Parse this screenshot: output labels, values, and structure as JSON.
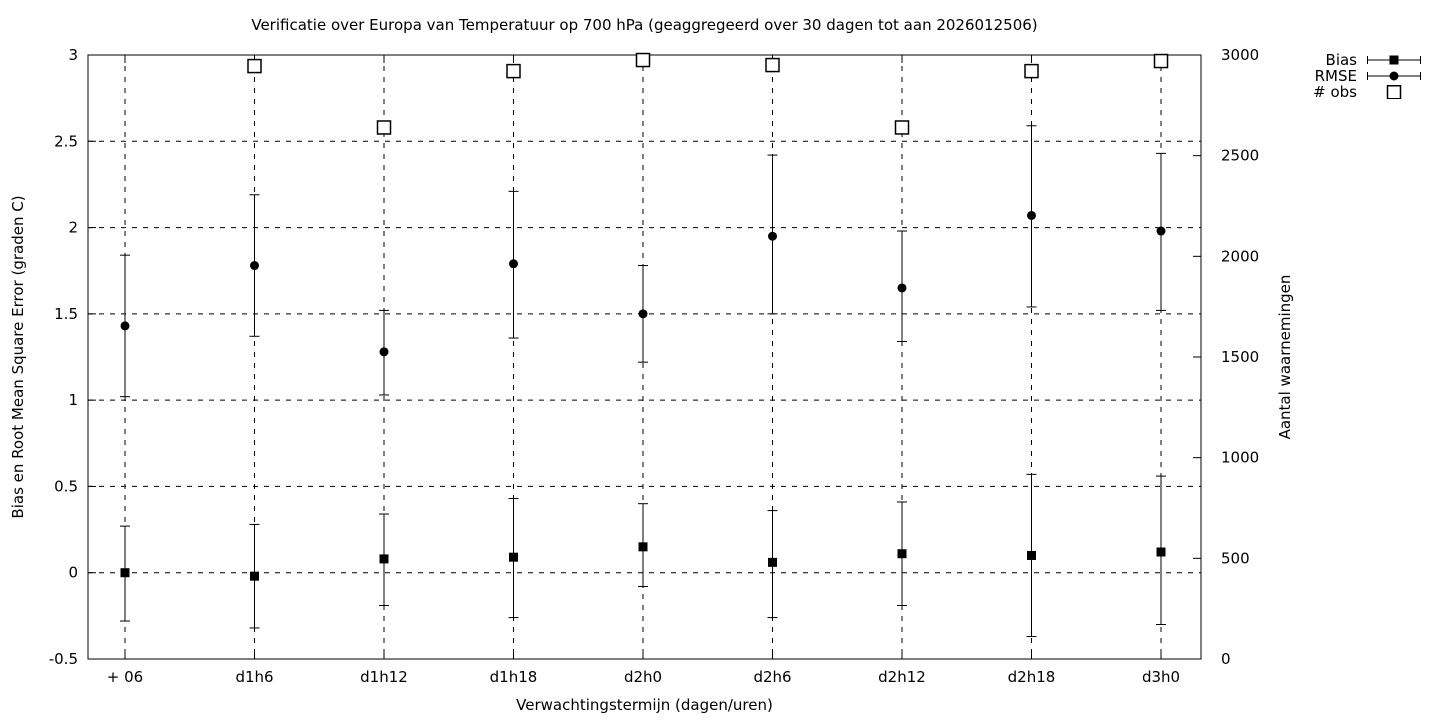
{
  "chart_data": {
    "type": "scatter",
    "title": "Verificatie over Europa van Temperatuur op 700 hPa (geaggregeerd over 30 dagen tot aan 2026012506)",
    "xlabel": "Verwachtingstermijn (dagen/uren)",
    "ylabel_left": "Bias en Root Mean Square Error (graden C)",
    "ylabel_right": "Aantal waarnemingen",
    "categories": [
      "+ 06",
      "d1h6",
      "d1h12",
      "d1h18",
      "d2h0",
      "d2h6",
      "d2h12",
      "d2h18",
      "d3h0"
    ],
    "y_left": {
      "min": -0.5,
      "max": 3,
      "ticks": [
        3,
        2.5,
        2,
        1.5,
        1,
        0.5,
        0,
        -0.5
      ]
    },
    "y_right": {
      "min": 0,
      "max": 3000,
      "ticks": [
        3000,
        2500,
        2000,
        1500,
        1000,
        500,
        0
      ]
    },
    "grid": true,
    "legend_position": "top-right-outside",
    "colors": {
      "foreground": "#000000",
      "background": "#ffffff"
    },
    "series": [
      {
        "name": "Bias",
        "marker": "filled-square",
        "axis": "left",
        "values": [
          0.0,
          -0.02,
          0.08,
          0.09,
          0.15,
          0.06,
          0.11,
          0.1,
          0.12
        ],
        "err_low": [
          -0.28,
          -0.32,
          -0.19,
          -0.26,
          -0.08,
          -0.26,
          -0.19,
          -0.37,
          -0.3
        ],
        "err_high": [
          0.27,
          0.28,
          0.34,
          0.43,
          0.4,
          0.36,
          0.41,
          0.57,
          0.56
        ]
      },
      {
        "name": "RMSE",
        "marker": "filled-circle",
        "axis": "left",
        "values": [
          1.43,
          1.78,
          1.28,
          1.79,
          1.5,
          1.95,
          1.65,
          2.07,
          1.98
        ],
        "err_low": [
          1.02,
          1.37,
          1.03,
          1.36,
          1.22,
          1.5,
          1.34,
          1.54,
          1.52
        ],
        "err_high": [
          1.84,
          2.19,
          1.52,
          2.21,
          1.78,
          2.42,
          1.98,
          2.59,
          2.43
        ]
      },
      {
        "name": "# obs",
        "marker": "open-square",
        "axis": "right",
        "values": [
          null,
          2945,
          2640,
          2920,
          2975,
          2950,
          2640,
          2920,
          2970
        ]
      }
    ]
  }
}
